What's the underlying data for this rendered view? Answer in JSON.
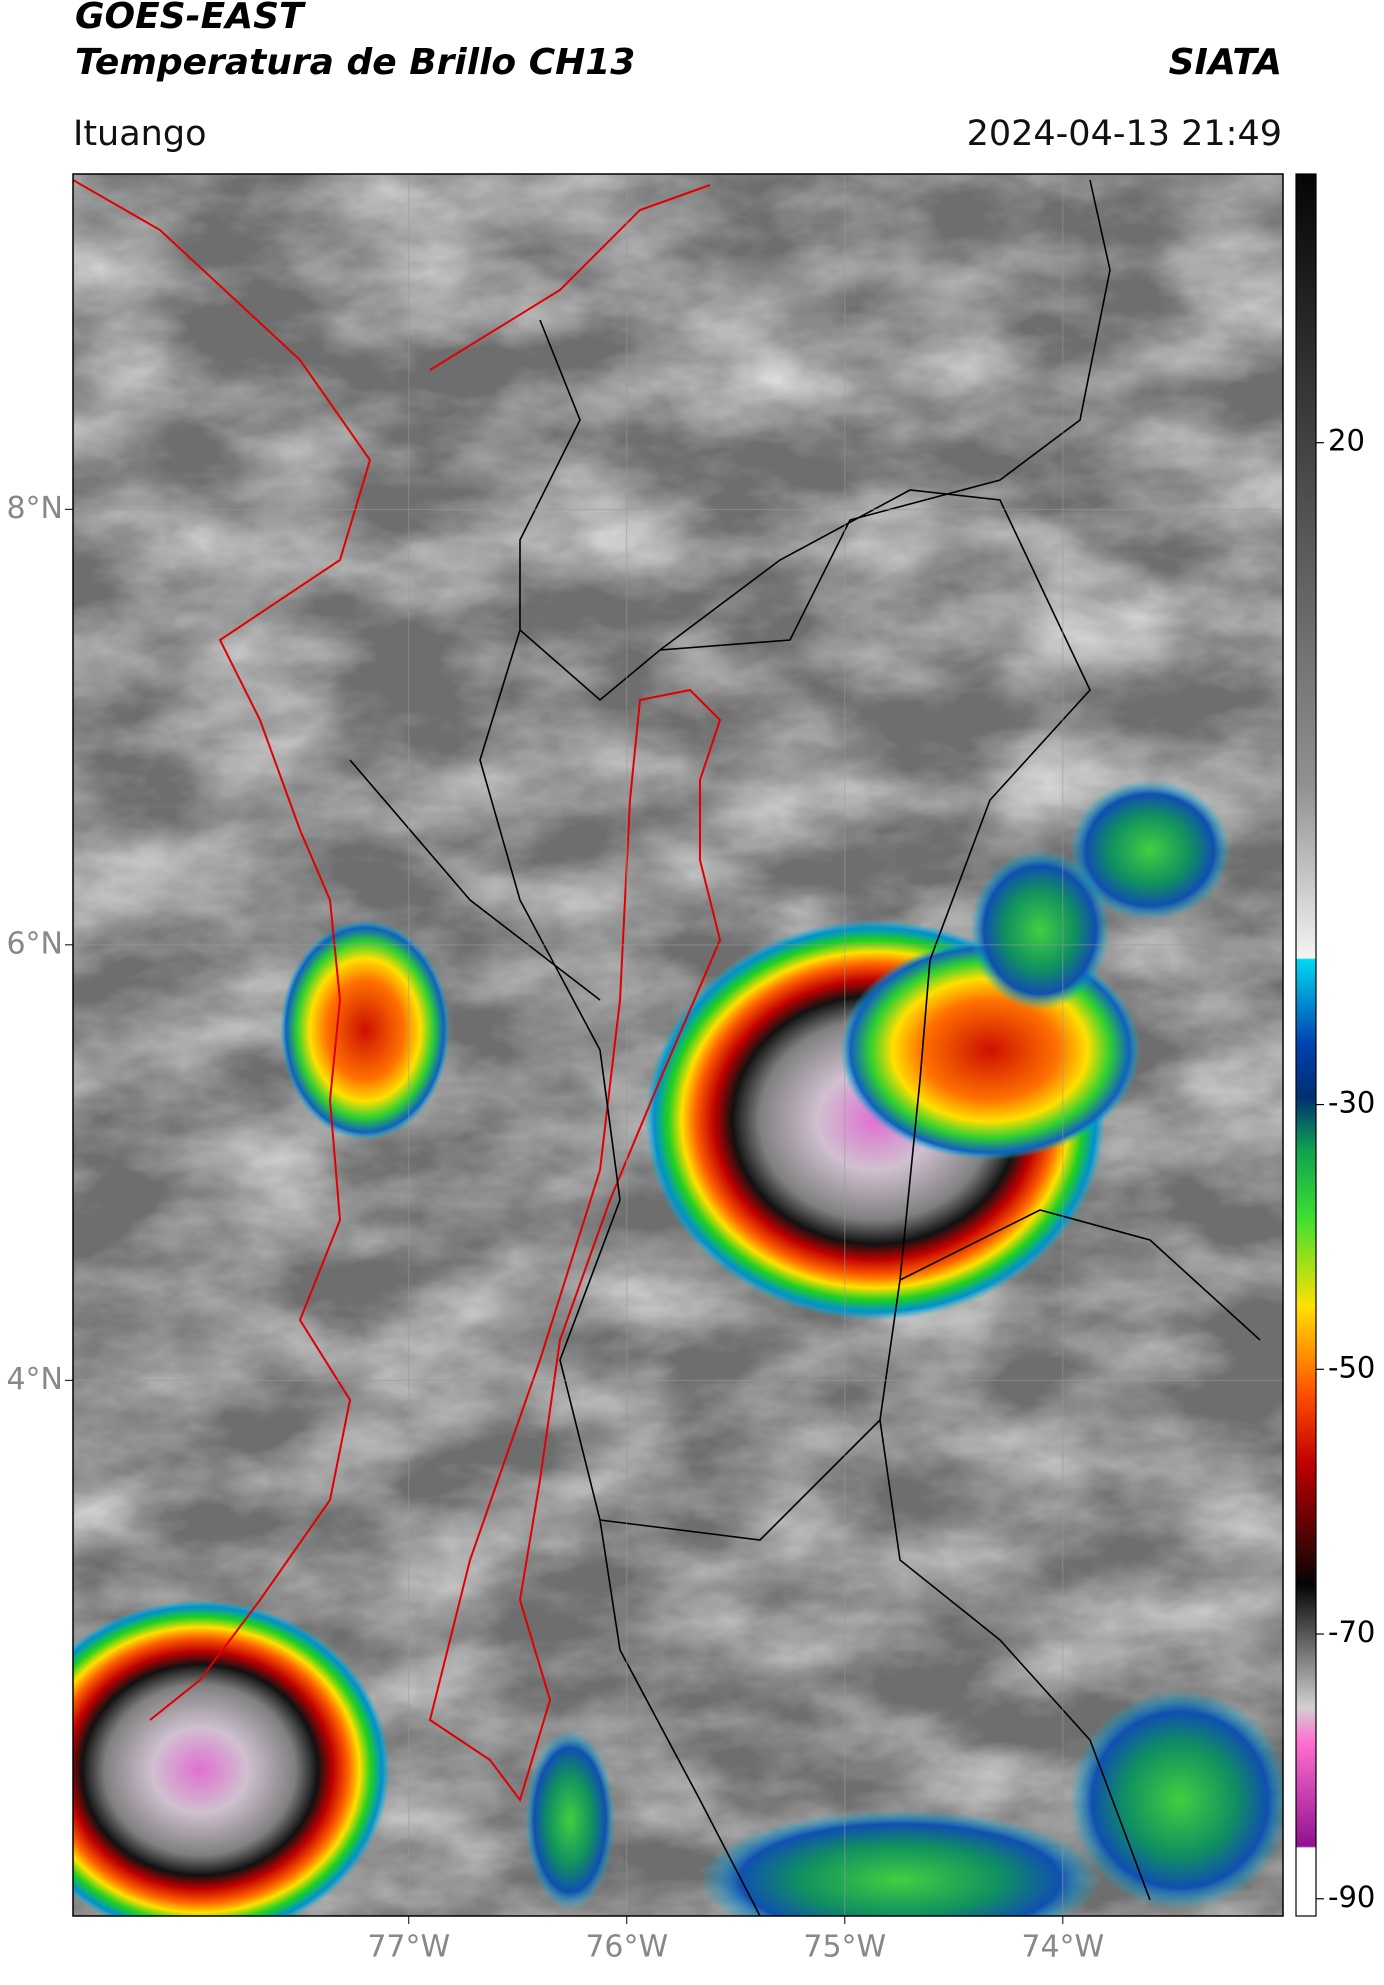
{
  "header": {
    "title": "GOES-EAST",
    "subtitle": "Temperatura de Brillo CH13",
    "source": "SIATA",
    "region": "Ituango",
    "timestamp": "2024-04-13 21:49"
  },
  "map": {
    "xlim": [
      -78.54,
      -72.99
    ],
    "ylim": [
      1.54,
      9.54
    ],
    "xticks": [
      {
        "value": -77,
        "label": "77°W"
      },
      {
        "value": -76,
        "label": "76°W"
      },
      {
        "value": -75,
        "label": "75°W"
      },
      {
        "value": -74,
        "label": "74°W"
      }
    ],
    "yticks": [
      {
        "value": 8,
        "label": "8°N"
      },
      {
        "value": 6,
        "label": "6°N"
      },
      {
        "value": 4,
        "label": "4°N"
      }
    ],
    "grid": true
  },
  "colorbar": {
    "lim": [
      -91.3,
      40.3
    ],
    "ticks": [
      20,
      -30,
      -50,
      -70,
      -90
    ]
  }
}
